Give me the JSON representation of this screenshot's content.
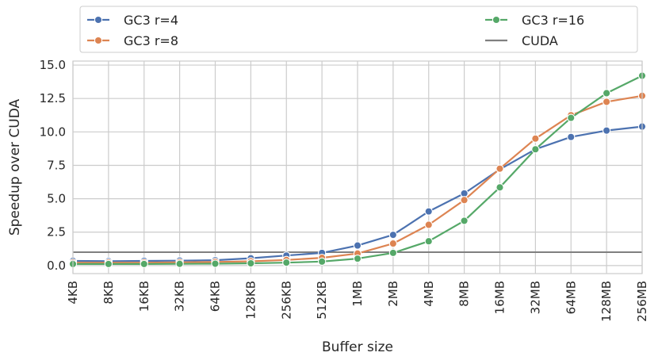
{
  "chart_data": {
    "type": "line",
    "title": "",
    "xlabel": "Buffer size",
    "ylabel": "Speedup over CUDA",
    "categories": [
      "4KB",
      "8KB",
      "16KB",
      "32KB",
      "64KB",
      "128KB",
      "256KB",
      "512KB",
      "1MB",
      "2MB",
      "4MB",
      "8MB",
      "16MB",
      "32MB",
      "64MB",
      "128MB",
      "256MB"
    ],
    "y_ticks": [
      "0.0",
      "2.5",
      "5.0",
      "7.5",
      "10.0",
      "12.5",
      "15.0"
    ],
    "ylim": [
      -0.6,
      15.3
    ],
    "grid": true,
    "legend_placement": "top",
    "series": [
      {
        "name": "GC3 r=4",
        "color": "#4c72b0",
        "marker": true,
        "values": [
          0.35,
          0.33,
          0.35,
          0.37,
          0.4,
          0.55,
          0.75,
          0.95,
          1.5,
          2.3,
          4.05,
          5.4,
          7.2,
          8.7,
          9.62,
          10.1,
          10.4
        ]
      },
      {
        "name": "GC3 r=8",
        "color": "#dd8452",
        "marker": true,
        "values": [
          0.22,
          0.22,
          0.22,
          0.24,
          0.27,
          0.32,
          0.42,
          0.58,
          0.9,
          1.65,
          3.05,
          4.9,
          7.25,
          9.5,
          11.25,
          12.25,
          12.7
        ]
      },
      {
        "name": "GC3 r=16",
        "color": "#55a868",
        "marker": true,
        "values": [
          0.12,
          0.12,
          0.12,
          0.13,
          0.14,
          0.17,
          0.22,
          0.3,
          0.52,
          0.95,
          1.82,
          3.35,
          5.85,
          8.7,
          11.05,
          12.9,
          14.2
        ]
      },
      {
        "name": "CUDA",
        "color": "#808080",
        "marker": false,
        "values": [
          1,
          1,
          1,
          1,
          1,
          1,
          1,
          1,
          1,
          1,
          1,
          1,
          1,
          1,
          1,
          1,
          1
        ]
      }
    ]
  }
}
